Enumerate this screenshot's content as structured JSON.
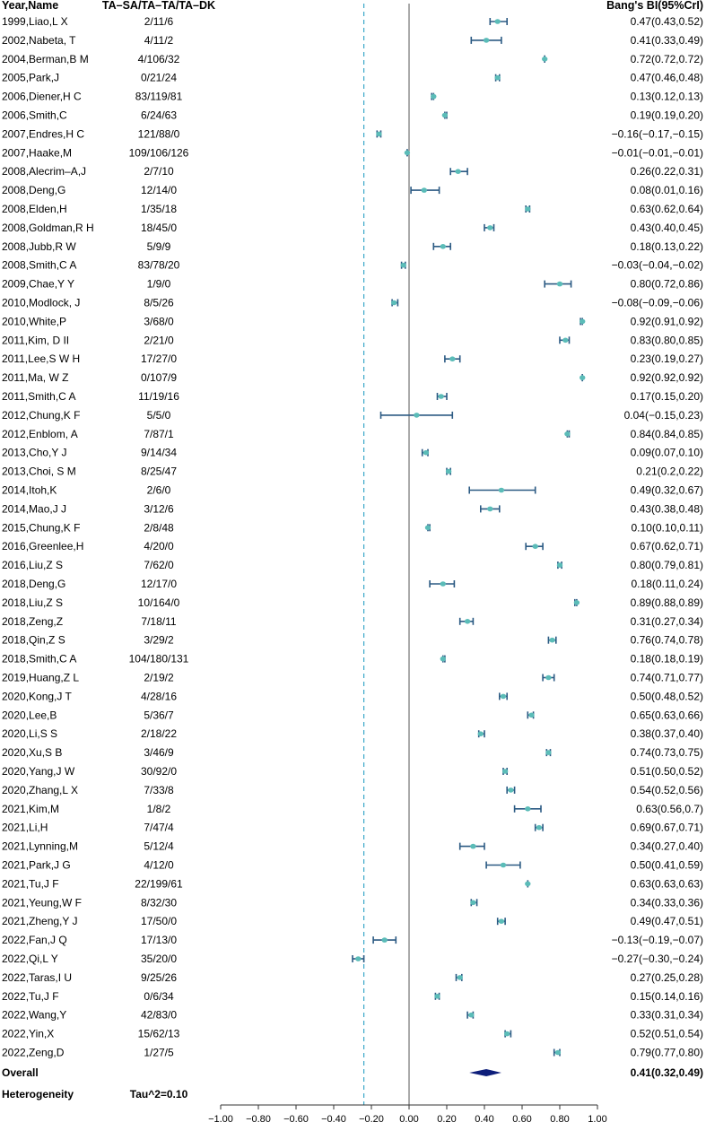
{
  "chart_data": {
    "type": "forest",
    "headers": {
      "study": "Year,Name",
      "counts": "TA–SA/TA–TA/TA–DK",
      "estimate": "Bang's BI(95%CrI)"
    },
    "x_ticks": [
      "−1.00",
      "−0.80",
      "−0.60",
      "−0.40",
      "−0.20",
      "0.00",
      "0.20",
      "0.40",
      "0.60",
      "0.80",
      "1.00"
    ],
    "xlim": [
      -1.0,
      1.0
    ],
    "null_line": 0.0,
    "reference_line": -0.24,
    "colors": {
      "point": "#5bbcb8",
      "ci": "#2b5a83",
      "overall": "#0d1e7a",
      "reference": "#3aa7c9"
    },
    "studies": [
      {
        "study": "1999,Liao,L X",
        "counts": "2/11/6",
        "est": 0.47,
        "lo": 0.43,
        "hi": 0.52,
        "label": "0.47(0.43,0.52)"
      },
      {
        "study": "2002,Nabeta, T",
        "counts": "4/11/2",
        "est": 0.41,
        "lo": 0.33,
        "hi": 0.49,
        "label": "0.41(0.33,0.49)"
      },
      {
        "study": "2004,Berman,B M",
        "counts": "4/106/32",
        "est": 0.72,
        "lo": 0.72,
        "hi": 0.72,
        "label": "0.72(0.72,0.72)"
      },
      {
        "study": "2005,Park,J",
        "counts": "0/21/24",
        "est": 0.47,
        "lo": 0.46,
        "hi": 0.48,
        "label": "0.47(0.46,0.48)"
      },
      {
        "study": "2006,Diener,H C",
        "counts": "83/119/81",
        "est": 0.13,
        "lo": 0.12,
        "hi": 0.13,
        "label": "0.13(0.12,0.13)"
      },
      {
        "study": "2006,Smith,C",
        "counts": "6/24/63",
        "est": 0.19,
        "lo": 0.19,
        "hi": 0.2,
        "label": "0.19(0.19,0.20)"
      },
      {
        "study": "2007,Endres,H C",
        "counts": "121/88/0",
        "est": -0.16,
        "lo": -0.17,
        "hi": -0.15,
        "label": "−0.16(−0.17,−0.15)"
      },
      {
        "study": "2007,Haake,M",
        "counts": "109/106/126",
        "est": -0.01,
        "lo": -0.01,
        "hi": -0.01,
        "label": "−0.01(−0.01,−0.01)"
      },
      {
        "study": "2008,Alecrim–A,J",
        "counts": "2/7/10",
        "est": 0.26,
        "lo": 0.22,
        "hi": 0.31,
        "label": "0.26(0.22,0.31)"
      },
      {
        "study": "2008,Deng,G",
        "counts": "12/14/0",
        "est": 0.08,
        "lo": 0.01,
        "hi": 0.16,
        "label": "0.08(0.01,0.16)"
      },
      {
        "study": "2008,Elden,H",
        "counts": "1/35/18",
        "est": 0.63,
        "lo": 0.62,
        "hi": 0.64,
        "label": "0.63(0.62,0.64)"
      },
      {
        "study": "2008,Goldman,R H",
        "counts": "18/45/0",
        "est": 0.43,
        "lo": 0.4,
        "hi": 0.45,
        "label": "0.43(0.40,0.45)"
      },
      {
        "study": "2008,Jubb,R W",
        "counts": "5/9/9",
        "est": 0.18,
        "lo": 0.13,
        "hi": 0.22,
        "label": "0.18(0.13,0.22)"
      },
      {
        "study": "2008,Smith,C A",
        "counts": "83/78/20",
        "est": -0.03,
        "lo": -0.04,
        "hi": -0.02,
        "label": "−0.03(−0.04,−0.02)"
      },
      {
        "study": "2009,Chae,Y Y",
        "counts": "1/9/0",
        "est": 0.8,
        "lo": 0.72,
        "hi": 0.86,
        "label": "0.80(0.72,0.86)"
      },
      {
        "study": "2010,Modlock, J",
        "counts": "8/5/26",
        "est": -0.08,
        "lo": -0.09,
        "hi": -0.06,
        "label": "−0.08(−0.09,−0.06)"
      },
      {
        "study": "2010,White,P",
        "counts": "3/68/0",
        "est": 0.92,
        "lo": 0.91,
        "hi": 0.92,
        "label": "0.92(0.91,0.92)"
      },
      {
        "study": "2011,Kim, D II",
        "counts": "2/21/0",
        "est": 0.83,
        "lo": 0.8,
        "hi": 0.85,
        "label": "0.83(0.80,0.85)"
      },
      {
        "study": "2011,Lee,S W H",
        "counts": "17/27/0",
        "est": 0.23,
        "lo": 0.19,
        "hi": 0.27,
        "label": "0.23(0.19,0.27)"
      },
      {
        "study": "2011,Ma, W Z",
        "counts": "0/107/9",
        "est": 0.92,
        "lo": 0.92,
        "hi": 0.92,
        "label": "0.92(0.92,0.92)"
      },
      {
        "study": "2011,Smith,C A",
        "counts": "11/19/16",
        "est": 0.17,
        "lo": 0.15,
        "hi": 0.2,
        "label": "0.17(0.15,0.20)"
      },
      {
        "study": "2012,Chung,K F",
        "counts": "5/5/0",
        "est": 0.04,
        "lo": -0.15,
        "hi": 0.23,
        "label": "0.04(−0.15,0.23)"
      },
      {
        "study": "2012,Enblom, A",
        "counts": "7/87/1",
        "est": 0.84,
        "lo": 0.84,
        "hi": 0.85,
        "label": "0.84(0.84,0.85)"
      },
      {
        "study": "2013,Cho,Y J",
        "counts": "9/14/34",
        "est": 0.09,
        "lo": 0.07,
        "hi": 0.1,
        "label": "0.09(0.07,0.10)"
      },
      {
        "study": "2013,Choi, S M",
        "counts": "8/25/47",
        "est": 0.21,
        "lo": 0.2,
        "hi": 0.22,
        "label": "0.21(0.2,0.22)"
      },
      {
        "study": "2014,Itoh,K",
        "counts": "2/6/0",
        "est": 0.49,
        "lo": 0.32,
        "hi": 0.67,
        "label": "0.49(0.32,0.67)"
      },
      {
        "study": "2014,Mao,J J",
        "counts": "3/12/6",
        "est": 0.43,
        "lo": 0.38,
        "hi": 0.48,
        "label": "0.43(0.38,0.48)"
      },
      {
        "study": "2015,Chung,K F",
        "counts": "2/8/48",
        "est": 0.1,
        "lo": 0.1,
        "hi": 0.11,
        "label": "0.10(0.10,0.11)"
      },
      {
        "study": "2016,Greenlee,H",
        "counts": "4/20/0",
        "est": 0.67,
        "lo": 0.62,
        "hi": 0.71,
        "label": "0.67(0.62,0.71)"
      },
      {
        "study": "2016,Liu,Z S",
        "counts": "7/62/0",
        "est": 0.8,
        "lo": 0.79,
        "hi": 0.81,
        "label": "0.80(0.79,0.81)"
      },
      {
        "study": "2018,Deng,G",
        "counts": "12/17/0",
        "est": 0.18,
        "lo": 0.11,
        "hi": 0.24,
        "label": "0.18(0.11,0.24)"
      },
      {
        "study": "2018,Liu,Z S",
        "counts": "10/164/0",
        "est": 0.89,
        "lo": 0.88,
        "hi": 0.89,
        "label": "0.89(0.88,0.89)"
      },
      {
        "study": "2018,Zeng,Z",
        "counts": "7/18/11",
        "est": 0.31,
        "lo": 0.27,
        "hi": 0.34,
        "label": "0.31(0.27,0.34)"
      },
      {
        "study": "2018,Qin,Z S",
        "counts": "3/29/2",
        "est": 0.76,
        "lo": 0.74,
        "hi": 0.78,
        "label": "0.76(0.74,0.78)"
      },
      {
        "study": "2018,Smith,C A",
        "counts": "104/180/131",
        "est": 0.18,
        "lo": 0.18,
        "hi": 0.19,
        "label": "0.18(0.18,0.19)"
      },
      {
        "study": "2019,Huang,Z L",
        "counts": "2/19/2",
        "est": 0.74,
        "lo": 0.71,
        "hi": 0.77,
        "label": "0.74(0.71,0.77)"
      },
      {
        "study": "2020,Kong,J T",
        "counts": "4/28/16",
        "est": 0.5,
        "lo": 0.48,
        "hi": 0.52,
        "label": "0.50(0.48,0.52)"
      },
      {
        "study": "2020,Lee,B",
        "counts": "5/36/7",
        "est": 0.65,
        "lo": 0.63,
        "hi": 0.66,
        "label": "0.65(0.63,0.66)"
      },
      {
        "study": "2020,Li,S S",
        "counts": "2/18/22",
        "est": 0.38,
        "lo": 0.37,
        "hi": 0.4,
        "label": "0.38(0.37,0.40)"
      },
      {
        "study": "2020,Xu,S B",
        "counts": "3/46/9",
        "est": 0.74,
        "lo": 0.73,
        "hi": 0.75,
        "label": "0.74(0.73,0.75)"
      },
      {
        "study": "2020,Yang,J W",
        "counts": "30/92/0",
        "est": 0.51,
        "lo": 0.5,
        "hi": 0.52,
        "label": "0.51(0.50,0.52)"
      },
      {
        "study": "2020,Zhang,L X",
        "counts": "7/33/8",
        "est": 0.54,
        "lo": 0.52,
        "hi": 0.56,
        "label": "0.54(0.52,0.56)"
      },
      {
        "study": "2021,Kim,M",
        "counts": "1/8/2",
        "est": 0.63,
        "lo": 0.56,
        "hi": 0.7,
        "label": "0.63(0.56,0.7)"
      },
      {
        "study": "2021,Li,H",
        "counts": "7/47/4",
        "est": 0.69,
        "lo": 0.67,
        "hi": 0.71,
        "label": "0.69(0.67,0.71)"
      },
      {
        "study": "2021,Lynning,M",
        "counts": "5/12/4",
        "est": 0.34,
        "lo": 0.27,
        "hi": 0.4,
        "label": "0.34(0.27,0.40)"
      },
      {
        "study": "2021,Park,J G",
        "counts": "4/12/0",
        "est": 0.5,
        "lo": 0.41,
        "hi": 0.59,
        "label": "0.50(0.41,0.59)"
      },
      {
        "study": "2021,Tu,J F",
        "counts": "22/199/61",
        "est": 0.63,
        "lo": 0.63,
        "hi": 0.63,
        "label": "0.63(0.63,0.63)"
      },
      {
        "study": "2021,Yeung,W F",
        "counts": "8/32/30",
        "est": 0.34,
        "lo": 0.33,
        "hi": 0.36,
        "label": "0.34(0.33,0.36)"
      },
      {
        "study": "2021,Zheng,Y J",
        "counts": "17/50/0",
        "est": 0.49,
        "lo": 0.47,
        "hi": 0.51,
        "label": "0.49(0.47,0.51)"
      },
      {
        "study": "2022,Fan,J Q",
        "counts": "17/13/0",
        "est": -0.13,
        "lo": -0.19,
        "hi": -0.07,
        "label": "−0.13(−0.19,−0.07)"
      },
      {
        "study": "2022,Qi,L Y",
        "counts": "35/20/0",
        "est": -0.27,
        "lo": -0.3,
        "hi": -0.24,
        "label": "−0.27(−0.30,−0.24)"
      },
      {
        "study": "2022,Taras,I U",
        "counts": "9/25/26",
        "est": 0.27,
        "lo": 0.25,
        "hi": 0.28,
        "label": "0.27(0.25,0.28)"
      },
      {
        "study": "2022,Tu,J F",
        "counts": "0/6/34",
        "est": 0.15,
        "lo": 0.14,
        "hi": 0.16,
        "label": "0.15(0.14,0.16)"
      },
      {
        "study": "2022,Wang,Y",
        "counts": "42/83/0",
        "est": 0.33,
        "lo": 0.31,
        "hi": 0.34,
        "label": "0.33(0.31,0.34)"
      },
      {
        "study": "2022,Yin,X",
        "counts": "15/62/13",
        "est": 0.52,
        "lo": 0.51,
        "hi": 0.54,
        "label": "0.52(0.51,0.54)"
      },
      {
        "study": "2022,Zeng,D",
        "counts": "1/27/5",
        "est": 0.79,
        "lo": 0.77,
        "hi": 0.8,
        "label": "0.79(0.77,0.80)"
      }
    ],
    "overall": {
      "label_left": "Overall",
      "est": 0.41,
      "lo": 0.32,
      "hi": 0.49,
      "label": "0.41(0.32,0.49)"
    },
    "heterogeneity": {
      "label": "Heterogeneity",
      "value": "Tau^2=0.10"
    }
  }
}
